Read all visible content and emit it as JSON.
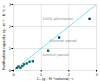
{
  "chart_data": {
    "type": "scatter",
    "xlabel": "Cᵥ (g . M⁻³volume)",
    "ylabel": "Purification capacity (g . m⁻³ . h⁻¹)",
    "xlim": [
      0,
      3
    ],
    "ylim": [
      0,
      3
    ],
    "xticks": [
      0,
      1,
      2,
      3
    ],
    "yticks": [
      0,
      1,
      2,
      3
    ],
    "grid": true,
    "series": [
      {
        "name": "Summer period",
        "color": "#003070",
        "marker": "square",
        "x": [
          2.75,
          1.65
        ],
        "values": [
          2.35,
          1.5
        ]
      },
      {
        "name": "Autumn period",
        "color": "#006060",
        "marker": "square",
        "x": [
          0.12,
          0.18,
          0.25,
          0.32,
          0.38,
          0.48,
          0.58,
          0.7,
          1.25
        ],
        "values": [
          0.12,
          0.18,
          0.12,
          0.2,
          0.28,
          0.32,
          0.4,
          0.42,
          0.9
        ]
      }
    ],
    "reference_line": {
      "label": "100% elimination",
      "color": "#55ddee",
      "x": [
        0,
        3
      ],
      "values": [
        0,
        3
      ]
    },
    "annotations": [
      {
        "text": "100% elimination",
        "x": 1.05,
        "y": 2.3
      },
      {
        "text": "Summer period",
        "x": 1.3,
        "y": 1.35
      },
      {
        "text": "Autumn period",
        "x": 1.05,
        "y": 0.72
      }
    ]
  }
}
